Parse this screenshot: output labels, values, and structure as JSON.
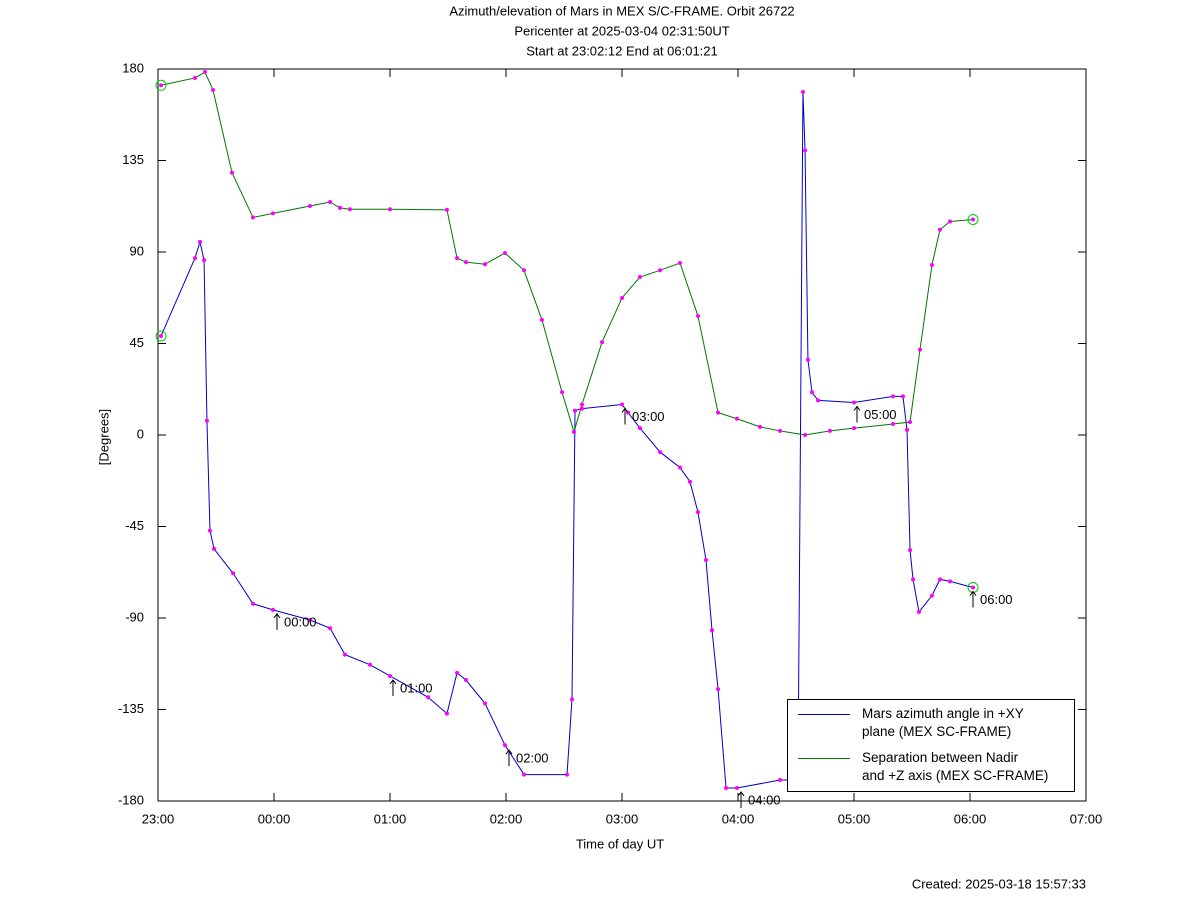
{
  "chart_data": {
    "type": "line",
    "title": "Azimuth/elevation of Mars in MEX S/C-FRAME.  Orbit 26722",
    "subtitle": [
      "Pericenter at 2025-03-04 02:31:50UT",
      "Start at 23:02:12 End at 06:01:21"
    ],
    "x_label": "Time of day UT",
    "y_label": "[Degrees]",
    "footer": "Created: 2025-03-18 15:57:33",
    "xlim": [
      23,
      31
    ],
    "xticks": [
      {
        "value": 23,
        "label": "23:00"
      },
      {
        "value": 24,
        "label": "00:00"
      },
      {
        "value": 25,
        "label": "01:00"
      },
      {
        "value": 26,
        "label": "02:00"
      },
      {
        "value": 27,
        "label": "03:00"
      },
      {
        "value": 28,
        "label": "04:00"
      },
      {
        "value": 29,
        "label": "05:00"
      },
      {
        "value": 30,
        "label": "06:00"
      },
      {
        "value": 31,
        "label": "07:00"
      }
    ],
    "ylim": [
      -180,
      180
    ],
    "yticks": [
      -180,
      -135,
      -90,
      -45,
      0,
      45,
      90,
      135,
      180
    ],
    "grid": false,
    "marker_color": "#ff00ff",
    "endpoint_color": "#00cc00",
    "series": [
      {
        "name": "Mars azimuth angle in +XY\nplane (MEX SC-FRAME)",
        "color": "#0000cc",
        "x": [
          23.026,
          23.319,
          23.362,
          23.397,
          23.422,
          23.448,
          23.483,
          23.647,
          23.819,
          23.991,
          24.31,
          24.483,
          24.612,
          24.828,
          25.0,
          25.328,
          25.491,
          25.578,
          25.655,
          25.819,
          25.991,
          26.155,
          26.526,
          26.569,
          26.595,
          26.655,
          27.0,
          27.052,
          27.155,
          27.328,
          27.5,
          27.586,
          27.655,
          27.724,
          27.776,
          27.828,
          27.897,
          27.991,
          28.362,
          28.517,
          28.56,
          28.578,
          28.603,
          28.638,
          28.69,
          29.0,
          29.336,
          29.422,
          29.457,
          29.483,
          29.509,
          29.56,
          29.672,
          29.741,
          29.828,
          30.026
        ],
        "values": [
          48.7,
          87,
          95,
          86,
          7,
          -47,
          -56,
          -68,
          -83,
          -86,
          -91,
          -95,
          -108,
          -113,
          -118.5,
          -129,
          -137,
          -117,
          -120.5,
          -132,
          -152.5,
          -167,
          -167,
          -130,
          12,
          13,
          15,
          11,
          3.4,
          -8.4,
          -16,
          -23,
          -38,
          -61.5,
          -96,
          -125,
          -173.6,
          -173.6,
          -169.7,
          -169.7,
          168.7,
          140,
          37,
          21,
          17,
          16,
          19,
          19,
          2.5,
          -56.6,
          -71,
          -87,
          -79,
          -71,
          -72,
          -75
        ]
      },
      {
        "name": "Separation between Nadir\nand +Z axis (MEX SC-FRAME)",
        "color": "#007700",
        "x": [
          23.026,
          23.319,
          23.405,
          23.474,
          23.638,
          23.819,
          23.991,
          24.31,
          24.483,
          24.569,
          24.655,
          25.0,
          25.491,
          25.578,
          25.655,
          25.819,
          25.991,
          26.155,
          26.31,
          26.483,
          26.586,
          26.655,
          26.828,
          27.0,
          27.155,
          27.328,
          27.5,
          27.655,
          27.828,
          27.991,
          28.19,
          28.362,
          28.578,
          28.793,
          29.0,
          29.336,
          29.483,
          29.569,
          29.672,
          29.741,
          29.828,
          30.026
        ],
        "values": [
          172,
          175.6,
          178.5,
          169.7,
          129,
          107,
          109,
          112.6,
          114.6,
          111.7,
          111,
          111,
          110.7,
          87,
          85,
          84,
          89.5,
          81,
          56.6,
          21,
          1.5,
          15,
          45.7,
          67.4,
          77.7,
          81,
          84.6,
          58.5,
          11,
          8,
          4,
          2,
          0,
          2,
          3.4,
          5.4,
          6.4,
          42,
          83.6,
          101,
          105,
          106
        ]
      }
    ],
    "annotations": [
      {
        "label": "00:00",
        "x": 24,
        "y": -86
      },
      {
        "label": "01:00",
        "x": 25,
        "y": -118.5
      },
      {
        "label": "02:00",
        "x": 26,
        "y": -153
      },
      {
        "label": "03:00",
        "x": 27,
        "y": 15
      },
      {
        "label": "04:00",
        "x": 28,
        "y": -173.6
      },
      {
        "label": "05:00",
        "x": 29,
        "y": 16
      },
      {
        "label": "06:00",
        "x": 30,
        "y": -75
      }
    ]
  }
}
